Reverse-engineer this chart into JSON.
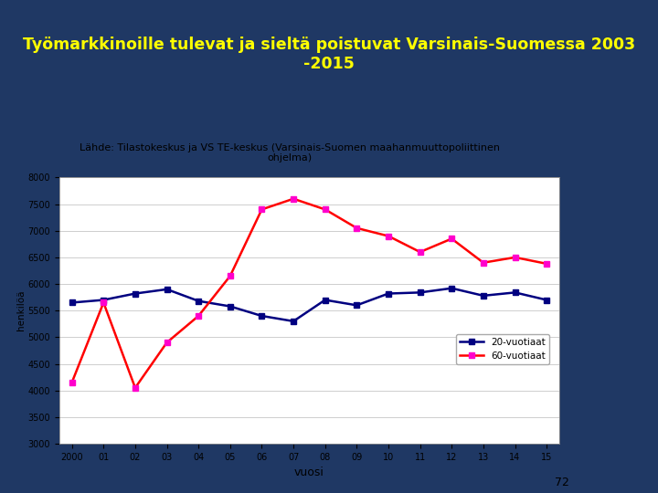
{
  "title": "Työmarkkinoille tulevat ja sieltä poistuvat Varsinais-Suomessa 2003\n-2015",
  "subtitle": "Lähde: Tilastokeskus ja VS TE-keskus (Varsinais-Suomen maahanmuuttopoliittinen\nohjelma)",
  "xlabel": "vuosi",
  "ylabel": "henkilöä",
  "title_color": "#FFFF00",
  "header_bg_color": "#1F3864",
  "plot_bg_color": "#FFFFFF",
  "outer_bg_color": "#1F3864",
  "white_bg_color": "#E8E8E8",
  "x_labels": [
    "2000",
    "01",
    "02",
    "03",
    "04",
    "05",
    "06",
    "07",
    "08",
    "09",
    "10",
    "11",
    "12",
    "13",
    "14",
    "15"
  ],
  "x_values": [
    2000,
    2001,
    2002,
    2003,
    2004,
    2005,
    2006,
    2007,
    2008,
    2009,
    2010,
    2011,
    2012,
    2013,
    2014,
    2015
  ],
  "line20_values": [
    5650,
    5700,
    5820,
    5900,
    5680,
    5580,
    5400,
    5300,
    5700,
    5600,
    5820,
    5840,
    5920,
    5780,
    5840,
    5700
  ],
  "line60_values": [
    4150,
    5650,
    4050,
    4900,
    5400,
    6150,
    7400,
    7600,
    7400,
    7050,
    6900,
    6600,
    6850,
    6400,
    6500,
    6380
  ],
  "line20_color": "#000080",
  "line60_color": "#FF0000",
  "marker_color_20": "#000080",
  "marker_color_60": "#FF00CC",
  "ylim": [
    3000,
    8000
  ],
  "yticks": [
    3000,
    3500,
    4000,
    4500,
    5000,
    5500,
    6000,
    6500,
    7000,
    7500,
    8000
  ],
  "legend_20": "20-vuotiaat",
  "legend_60": "60-vuotiaat",
  "page_number": "72",
  "line_width": 1.8,
  "marker_size": 4
}
